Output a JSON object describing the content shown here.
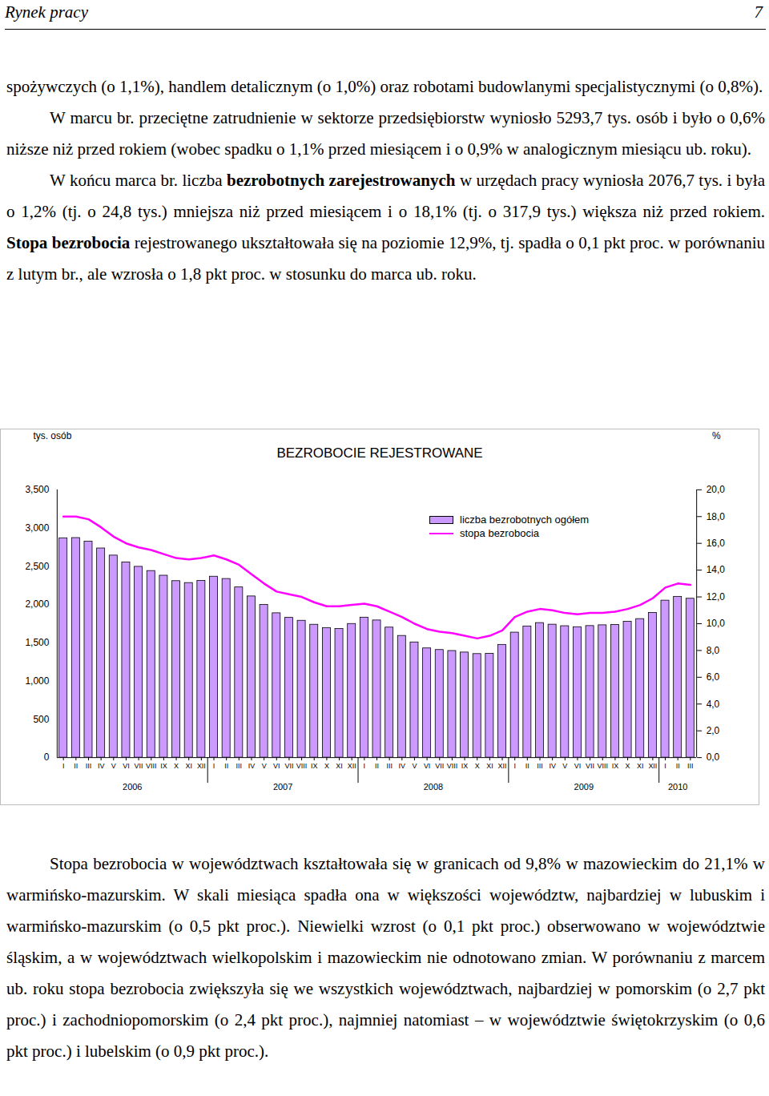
{
  "header": {
    "section": "Rynek pracy",
    "page": "7"
  },
  "text_before": [
    {
      "runs": [
        {
          "text": "spożywczych (o 1,1%), handlem detalicznym (o 1,0%) oraz robotami budowlanymi specjalistycznymi (o 0,8%)."
        }
      ]
    },
    {
      "runs": [
        {
          "text": "W marcu br. przeciętne zatrudnienie w sektorze przedsiębiorstw wyniosło 5293,7 tys. osób i było o 0,6% niższe niż przed rokiem (wobec spadku o 1,1% przed miesiącem i o 0,9% w analogicznym miesiącu ub. roku)."
        }
      ]
    },
    {
      "runs": [
        {
          "text": "W końcu marca br. liczba "
        },
        {
          "text": "bezrobotnych zarejestrowanych",
          "bold": true
        },
        {
          "text": " w urzędach pracy wyniosła 2076,7 tys. i była o 1,2% (tj. o 24,8 tys.) mniejsza niż przed miesiącem i o 18,1% (tj. o 317,9 tys.) większa niż przed rokiem. "
        },
        {
          "text": "Stopa bezrobocia",
          "bold": true
        },
        {
          "text": " rejestrowanego ukształtowała się na poziomie 12,9%, tj. spadła o 0,1 pkt proc. w porównaniu z lutym br., ale wzrosła o 1,8 pkt proc. w stosunku do marca ub. roku."
        }
      ]
    }
  ],
  "chart_data": {
    "type": "bar",
    "title": "BEZROBOCIE REJESTROWANE",
    "y_label": "tys. osób",
    "y2_label": "%",
    "categories": [
      "I",
      "II",
      "III",
      "IV",
      "V",
      "VI",
      "VII",
      "VIII",
      "IX",
      "X",
      "XI",
      "XII",
      "I",
      "II",
      "III",
      "IV",
      "V",
      "VI",
      "VII",
      "VIII",
      "IX",
      "X",
      "XI",
      "XII",
      "I",
      "II",
      "III",
      "IV",
      "V",
      "VI",
      "VII",
      "VIII",
      "IX",
      "X",
      "XI",
      "XII",
      "I",
      "II",
      "III",
      "IV",
      "V",
      "VI",
      "VII",
      "VIII",
      "IX",
      "X",
      "XI",
      "XII",
      "I",
      "II",
      "III"
    ],
    "years": [
      "2006",
      "2007",
      "2008",
      "2009",
      "2010"
    ],
    "series": [
      {
        "name": "liczba bezrobotnych ogółem",
        "type": "bar",
        "color": "#cc99ff",
        "values": [
          2867,
          2870,
          2822,
          2734,
          2641,
          2552,
          2494,
          2439,
          2378,
          2307,
          2282,
          2309,
          2365,
          2335,
          2225,
          2107,
          1997,
          1887,
          1827,
          1789,
          1737,
          1694,
          1681,
          1747,
          1830,
          1793,
          1700,
          1591,
          1506,
          1428,
          1407,
          1394,
          1374,
          1354,
          1357,
          1474,
          1634,
          1715,
          1759,
          1738,
          1718,
          1705,
          1720,
          1730,
          1735,
          1775,
          1811,
          1892,
          2052,
          2102,
          2077
        ]
      },
      {
        "name": "stopa bezrobocia",
        "type": "line",
        "color": "#ff00ff",
        "axis": "y2",
        "values": [
          18.0,
          18.0,
          17.8,
          17.2,
          16.5,
          16.0,
          15.7,
          15.5,
          15.2,
          14.9,
          14.8,
          14.9,
          15.1,
          14.8,
          14.4,
          13.7,
          13.0,
          12.4,
          12.2,
          12.0,
          11.6,
          11.3,
          11.3,
          11.4,
          11.5,
          11.3,
          10.9,
          10.5,
          10.0,
          9.6,
          9.4,
          9.3,
          9.1,
          8.9,
          9.1,
          9.5,
          10.5,
          10.9,
          11.1,
          11.0,
          10.8,
          10.7,
          10.8,
          10.8,
          10.9,
          11.1,
          11.4,
          11.9,
          12.7,
          13.0,
          12.9
        ]
      }
    ],
    "ylim": [
      0,
      3500
    ],
    "yticks": [
      0,
      500,
      1000,
      1500,
      2000,
      2500,
      3000,
      3500
    ],
    "y2lim": [
      0,
      20
    ],
    "y2ticks": [
      {
        "value": 0,
        "label": "0,0"
      },
      {
        "value": 2,
        "label": "2,0"
      },
      {
        "value": 4,
        "label": "4,0"
      },
      {
        "value": 6,
        "label": "6,0"
      },
      {
        "value": 8,
        "label": "8,0"
      },
      {
        "value": 10,
        "label": "10,0"
      },
      {
        "value": 12,
        "label": "12,0"
      },
      {
        "value": 14,
        "label": "14,0"
      },
      {
        "value": 16,
        "label": "16,0"
      },
      {
        "value": 18,
        "label": "18,0"
      },
      {
        "value": 20,
        "label": "20,0"
      }
    ],
    "legend": "top-right",
    "grid": false
  },
  "text_after": [
    {
      "runs": [
        {
          "text": "Stopa bezrobocia w województwach kształtowała się w granicach od 9,8% w mazowieckim do 21,1% w warmińsko-mazurskim. W skali miesiąca spadła ona w większości województw, najbardziej w lubuskim i warmińsko-mazurskim (o 0,5 pkt proc.). Niewielki wzrost (o 0,1 pkt proc.) obserwowano w województwie śląskim, a w województwach wielkopolskim i mazowieckim nie odnotowano zmian. W porównaniu z marcem ub. roku stopa bezrobocia zwiększyła się we wszystkich województwach, najbardziej w pomorskim (o 2,7 pkt proc.) i zachodniopomorskim (o 2,4 pkt proc.), najmniej natomiast – w województwie świętokrzyskim (o 0,6 pkt proc.) i lubelskim (o 0,9 pkt proc.)."
        }
      ]
    }
  ]
}
